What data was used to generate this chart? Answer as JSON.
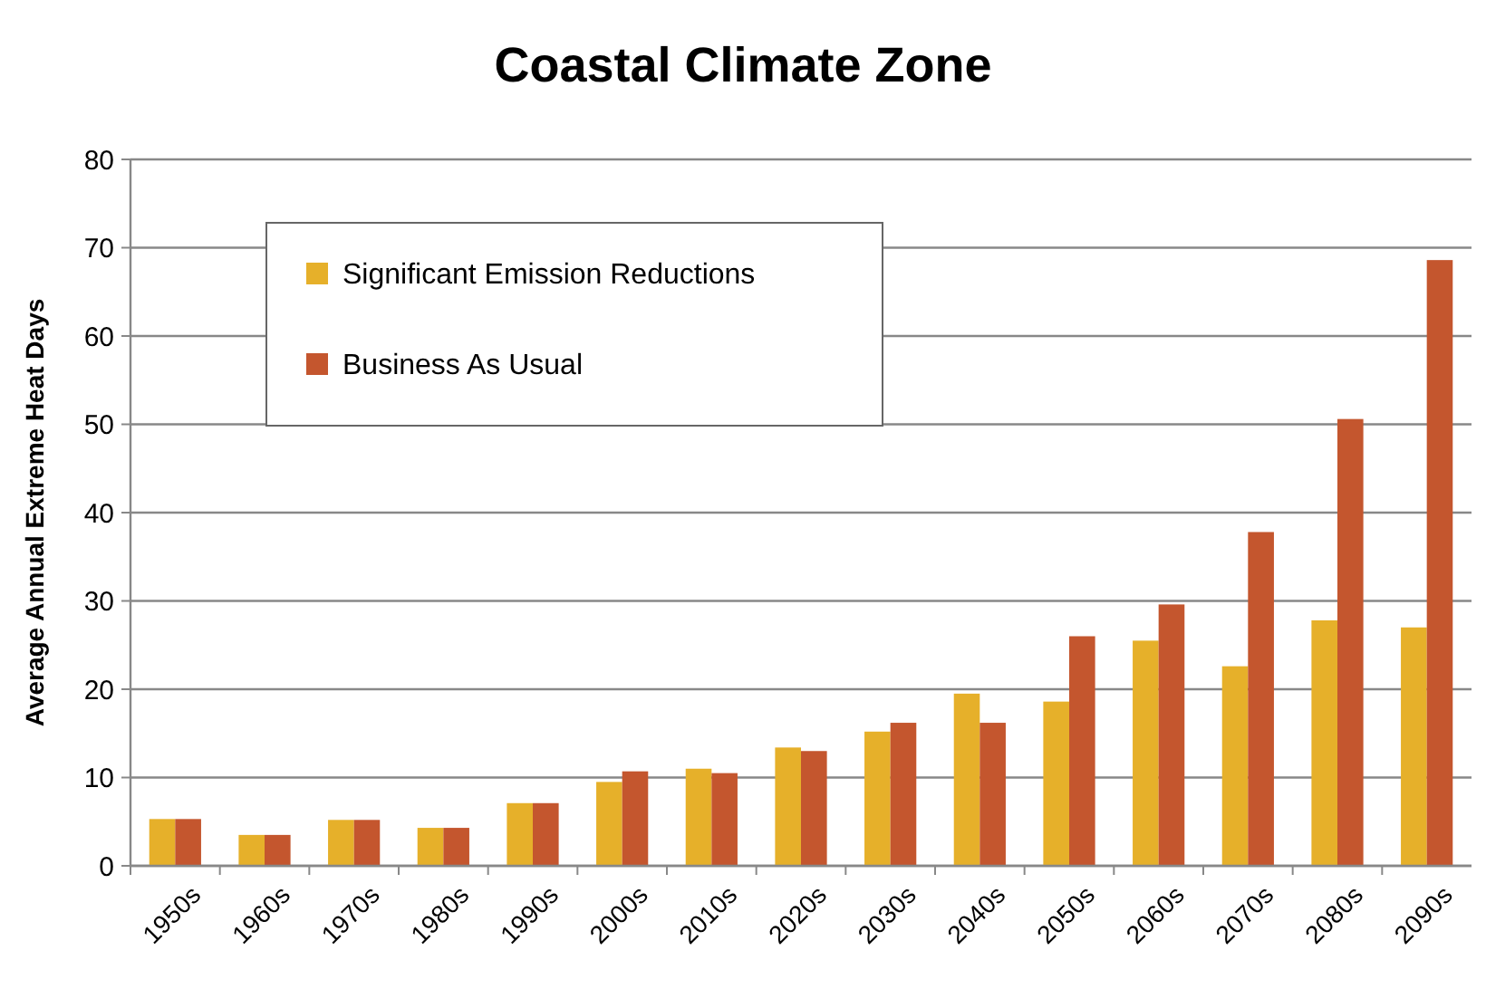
{
  "chart_data": {
    "type": "bar",
    "title": "Coastal Climate Zone",
    "ylabel": "Average Annual Extreme Heat Days",
    "categories": [
      "1950s",
      "1960s",
      "1970s",
      "1980s",
      "1990s",
      "2000s",
      "2010s",
      "2020s",
      "2030s",
      "2040s",
      "2050s",
      "2060s",
      "2070s",
      "2080s",
      "2090s"
    ],
    "series": [
      {
        "name": "Significant Emission Reductions",
        "color": "#e6b02a",
        "values": [
          5.3,
          3.5,
          5.2,
          4.3,
          7.1,
          9.5,
          11,
          13.4,
          15.2,
          19.5,
          18.6,
          25.5,
          22.6,
          27.8,
          27
        ]
      },
      {
        "name": "Business As Usual",
        "color": "#c4562e",
        "values": [
          5.3,
          3.5,
          5.2,
          4.3,
          7.1,
          10.7,
          10.5,
          13,
          16.2,
          16.2,
          26,
          29.6,
          37.8,
          50.6,
          68.6
        ]
      }
    ],
    "ylim": [
      0,
      80
    ],
    "yticks": [
      0,
      10,
      20,
      30,
      40,
      50,
      60,
      70,
      80
    ],
    "grid": "y",
    "legend": "top left"
  }
}
